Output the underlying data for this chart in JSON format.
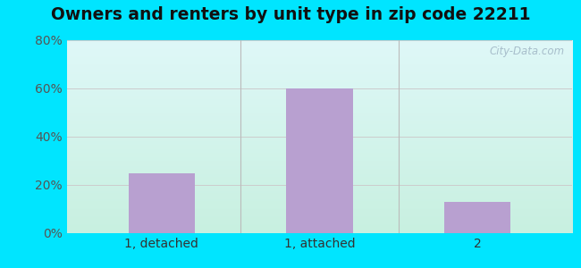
{
  "title": "Owners and renters by unit type in zip code 22211",
  "categories": [
    "1, detached",
    "1, attached",
    "2"
  ],
  "values": [
    25,
    60,
    13
  ],
  "bar_color": "#b8a0d0",
  "ylim": [
    0,
    80
  ],
  "yticks": [
    0,
    20,
    40,
    60,
    80
  ],
  "ytick_labels": [
    "0%",
    "20%",
    "40%",
    "60%",
    "80%"
  ],
  "title_fontsize": 13.5,
  "tick_fontsize": 10,
  "background_outer": "#00e5ff",
  "bg_top_left": "#c8f5e8",
  "bg_top_right": "#e8fafc",
  "bg_bottom_left": "#b8f0e0",
  "bg_bottom_right": "#d8f8f0",
  "watermark_text": "City-Data.com",
  "grid_color": "#cccccc",
  "separator_color": "#bbbbbb"
}
